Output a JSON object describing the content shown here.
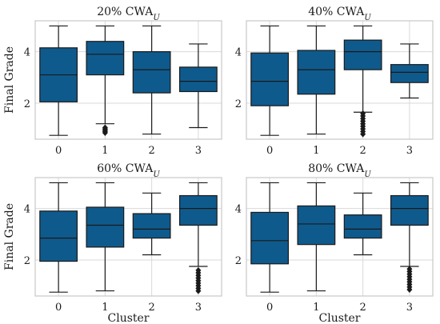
{
  "colors": {
    "box": "#0f5a8c",
    "line": "#1a1a1a",
    "grid": "#d9d9d9",
    "frame": "#c8c8c8",
    "outlier": "#1a1a1a"
  },
  "chart_data": [
    {
      "type": "box",
      "title": "20% CWA",
      "title_subscript": "U",
      "ylabel": "Final Grade",
      "xlabel": "",
      "categories": [
        "0",
        "1",
        "2",
        "3"
      ],
      "yticks": [
        2,
        4
      ],
      "ylim": [
        0.6,
        5.2
      ],
      "grid": true,
      "boxes": [
        {
          "whislo": 0.75,
          "q1": 2.05,
          "med": 3.1,
          "q3": 4.15,
          "whishi": 5.0,
          "outliers": []
        },
        {
          "whislo": 1.2,
          "q1": 3.1,
          "med": 3.9,
          "q3": 4.4,
          "whishi": 5.0,
          "outliers": [
            0.85,
            0.9,
            0.95,
            1.0,
            1.05
          ]
        },
        {
          "whislo": 0.8,
          "q1": 2.4,
          "med": 3.3,
          "q3": 4.0,
          "whishi": 5.0,
          "outliers": []
        },
        {
          "whislo": 1.05,
          "q1": 2.45,
          "med": 2.85,
          "q3": 3.4,
          "whishi": 4.3,
          "outliers": []
        }
      ]
    },
    {
      "type": "box",
      "title": "40% CWA",
      "title_subscript": "U",
      "ylabel": "",
      "xlabel": "",
      "categories": [
        "0",
        "1",
        "2",
        "3"
      ],
      "yticks": [
        2,
        4
      ],
      "ylim": [
        0.6,
        5.2
      ],
      "grid": true,
      "boxes": [
        {
          "whislo": 0.75,
          "q1": 1.9,
          "med": 2.85,
          "q3": 3.95,
          "whishi": 5.0,
          "outliers": []
        },
        {
          "whislo": 0.8,
          "q1": 2.35,
          "med": 3.3,
          "q3": 4.05,
          "whishi": 5.0,
          "outliers": []
        },
        {
          "whislo": 1.65,
          "q1": 3.3,
          "med": 4.0,
          "q3": 4.45,
          "whishi": 5.0,
          "outliers": [
            0.8,
            0.9,
            1.0,
            1.1,
            1.2,
            1.3,
            1.4,
            1.5,
            1.6
          ]
        },
        {
          "whislo": 2.2,
          "q1": 2.8,
          "med": 3.2,
          "q3": 3.5,
          "whishi": 4.3,
          "outliers": []
        }
      ]
    },
    {
      "type": "box",
      "title": "60% CWA",
      "title_subscript": "U",
      "ylabel": "Final Grade",
      "xlabel": "Cluster",
      "categories": [
        "0",
        "1",
        "2",
        "3"
      ],
      "yticks": [
        2,
        4
      ],
      "ylim": [
        0.6,
        5.2
      ],
      "grid": true,
      "boxes": [
        {
          "whislo": 0.75,
          "q1": 1.95,
          "med": 2.85,
          "q3": 3.9,
          "whishi": 5.0,
          "outliers": []
        },
        {
          "whislo": 0.8,
          "q1": 2.5,
          "med": 3.35,
          "q3": 4.05,
          "whishi": 5.0,
          "outliers": []
        },
        {
          "whislo": 2.2,
          "q1": 2.85,
          "med": 3.2,
          "q3": 3.8,
          "whishi": 4.6,
          "outliers": []
        },
        {
          "whislo": 1.75,
          "q1": 3.35,
          "med": 4.0,
          "q3": 4.5,
          "whishi": 5.0,
          "outliers": [
            0.8,
            0.9,
            1.0,
            1.1,
            1.2,
            1.3,
            1.4,
            1.5,
            1.6
          ]
        }
      ]
    },
    {
      "type": "box",
      "title": "80% CWA",
      "title_subscript": "U",
      "ylabel": "",
      "xlabel": "Cluster",
      "categories": [
        "0",
        "1",
        "2",
        "3"
      ],
      "yticks": [
        2,
        4
      ],
      "ylim": [
        0.6,
        5.2
      ],
      "grid": true,
      "boxes": [
        {
          "whislo": 0.75,
          "q1": 1.85,
          "med": 2.75,
          "q3": 3.85,
          "whishi": 5.0,
          "outliers": []
        },
        {
          "whislo": 0.8,
          "q1": 2.6,
          "med": 3.4,
          "q3": 4.1,
          "whishi": 5.0,
          "outliers": []
        },
        {
          "whislo": 2.2,
          "q1": 2.85,
          "med": 3.2,
          "q3": 3.75,
          "whishi": 4.6,
          "outliers": []
        },
        {
          "whislo": 1.75,
          "q1": 3.35,
          "med": 4.0,
          "q3": 4.5,
          "whishi": 5.0,
          "outliers": [
            0.85,
            0.95,
            1.05,
            1.15,
            1.25,
            1.35,
            1.45,
            1.55,
            1.65
          ]
        }
      ]
    }
  ]
}
